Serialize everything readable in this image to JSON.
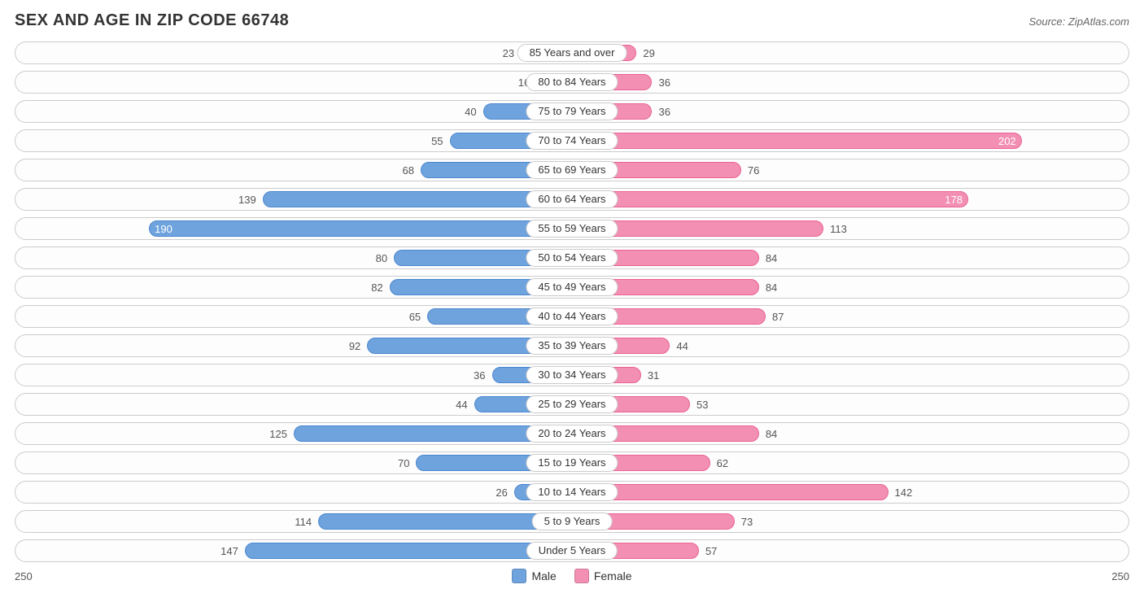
{
  "title": "SEX AND AGE IN ZIP CODE 66748",
  "source": "Source: ZipAtlas.com",
  "chart": {
    "type": "population-pyramid",
    "axis_max": 250,
    "axis_label_left": "250",
    "axis_label_right": "250",
    "value_inside_threshold": 150,
    "colors": {
      "male_bar": "#6fa3dd",
      "male_border": "#4a86cf",
      "female_bar": "#f28fb2",
      "female_border": "#eb6395",
      "row_border": "#cccccc",
      "row_bg": "#fdfdfd",
      "background": "#ffffff",
      "text": "#333333",
      "text_muted": "#555555",
      "value_inside_text": "#ffffff"
    },
    "legend": {
      "male": "Male",
      "female": "Female"
    },
    "rows": [
      {
        "label": "85 Years and over",
        "male": 23,
        "female": 29
      },
      {
        "label": "80 to 84 Years",
        "male": 16,
        "female": 36
      },
      {
        "label": "75 to 79 Years",
        "male": 40,
        "female": 36
      },
      {
        "label": "70 to 74 Years",
        "male": 55,
        "female": 202
      },
      {
        "label": "65 to 69 Years",
        "male": 68,
        "female": 76
      },
      {
        "label": "60 to 64 Years",
        "male": 139,
        "female": 178
      },
      {
        "label": "55 to 59 Years",
        "male": 190,
        "female": 113
      },
      {
        "label": "50 to 54 Years",
        "male": 80,
        "female": 84
      },
      {
        "label": "45 to 49 Years",
        "male": 82,
        "female": 84
      },
      {
        "label": "40 to 44 Years",
        "male": 65,
        "female": 87
      },
      {
        "label": "35 to 39 Years",
        "male": 92,
        "female": 44
      },
      {
        "label": "30 to 34 Years",
        "male": 36,
        "female": 31
      },
      {
        "label": "25 to 29 Years",
        "male": 44,
        "female": 53
      },
      {
        "label": "20 to 24 Years",
        "male": 125,
        "female": 84
      },
      {
        "label": "15 to 19 Years",
        "male": 70,
        "female": 62
      },
      {
        "label": "10 to 14 Years",
        "male": 26,
        "female": 142
      },
      {
        "label": "5 to 9 Years",
        "male": 114,
        "female": 73
      },
      {
        "label": "Under 5 Years",
        "male": 147,
        "female": 57
      }
    ]
  }
}
